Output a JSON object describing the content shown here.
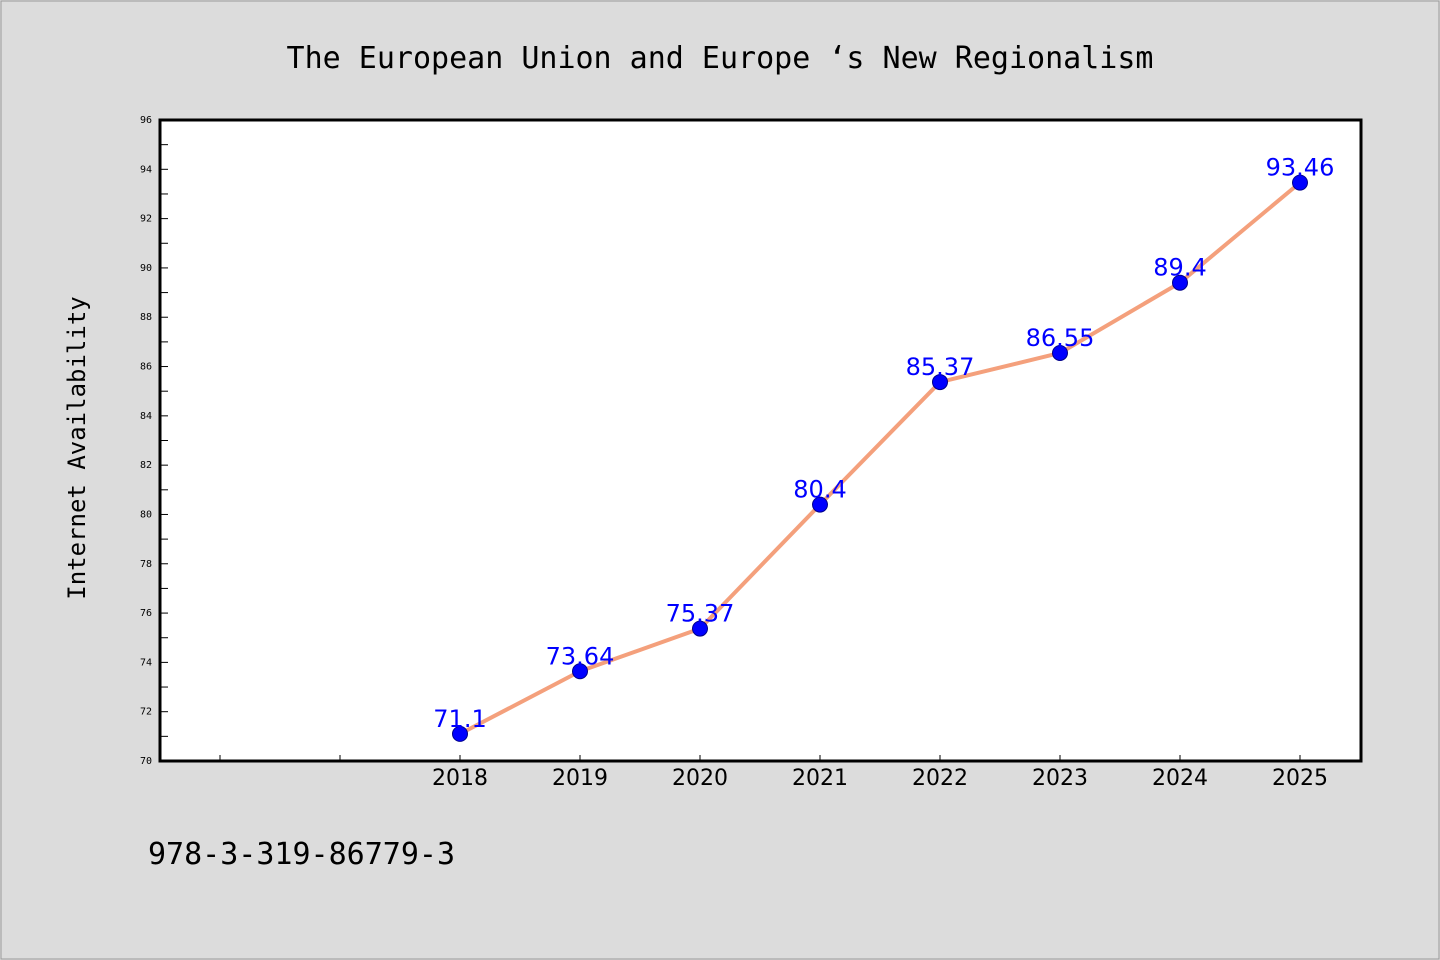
{
  "chart_data": {
    "type": "line",
    "title": "The European Union and Europe ‘s New Regionalism",
    "ylabel": "Internet Availability",
    "xlabel": "",
    "ylim": [
      70,
      96
    ],
    "yticks": [
      "70",
      "72",
      "74",
      "76",
      "78",
      "80",
      "82",
      "84",
      "86",
      "88",
      "90",
      "92",
      "94",
      "96"
    ],
    "categories": [
      "2018",
      "2019",
      "2020",
      "2021",
      "2022",
      "2023",
      "2024",
      "2025"
    ],
    "series": [
      {
        "values": [
          71.1,
          73.64,
          75.37,
          80.4,
          85.37,
          86.55,
          89.4,
          93.46
        ],
        "labels": [
          "71.1",
          "73.64",
          "75.37",
          "80.4",
          "85.37",
          "86.55",
          "89.4",
          "93.46"
        ],
        "line_color": "#f4a07c",
        "marker_color": "#0000ff"
      }
    ],
    "grid": false,
    "legend": "none"
  },
  "footer": {
    "text": "978-3-319-86779-3"
  },
  "colors": {
    "background": "#dcdcdc",
    "plot_background": "#ffffff",
    "line": "#f4a07c",
    "marker": "#0000ff",
    "data_label": "#0000ff"
  }
}
